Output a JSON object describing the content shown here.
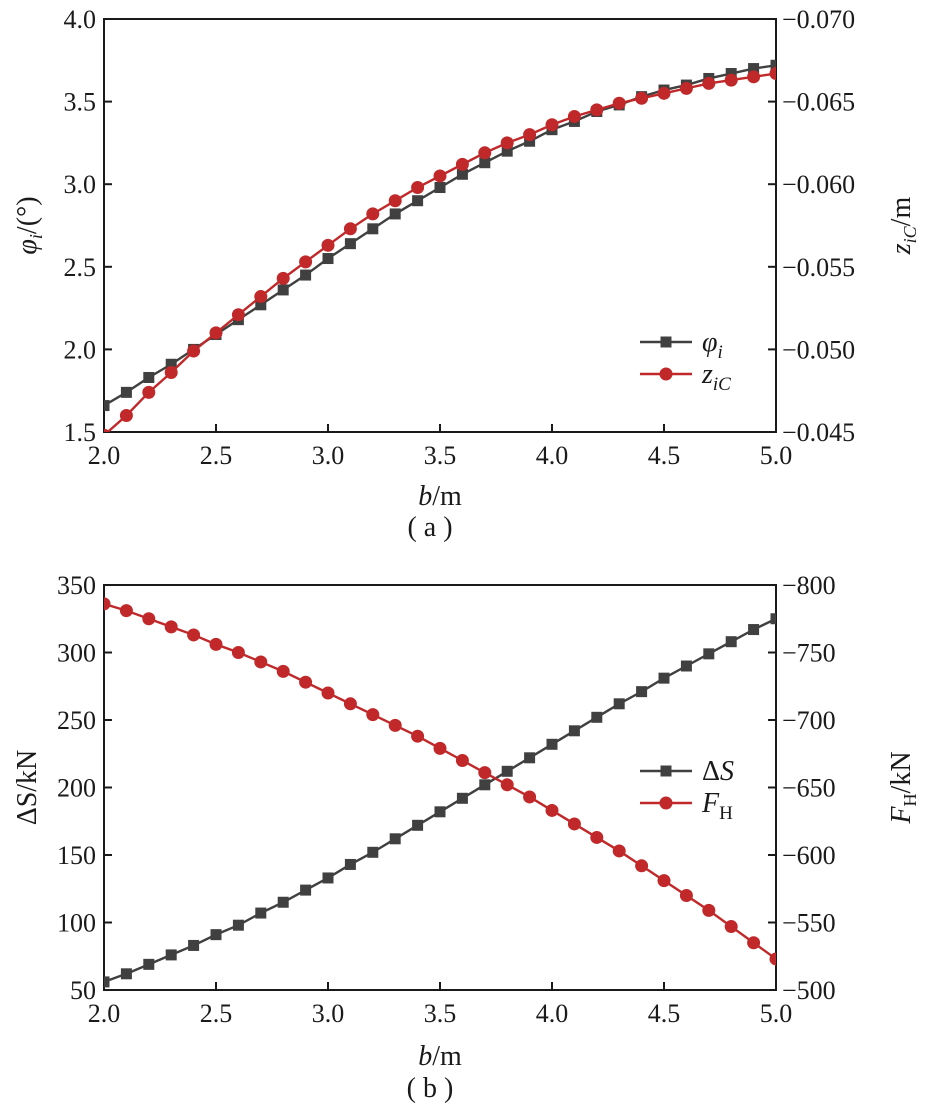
{
  "chart_data": [
    {
      "type": "line",
      "caption": "( a )",
      "x_axis": {
        "label_var": "b",
        "label_unit": "/m",
        "range": [
          2.0,
          5.0
        ],
        "ticks": [
          "2.0",
          "2.5",
          "3.0",
          "3.5",
          "4.0",
          "4.5",
          "5.0"
        ]
      },
      "y_left": {
        "label_var": "φ",
        "label_sub": "i",
        "label_unit": "/(°)",
        "range": [
          1.5,
          4.0
        ],
        "ticks": [
          "1.5",
          "2.0",
          "2.5",
          "3.0",
          "3.5",
          "4.0"
        ]
      },
      "y_right": {
        "label_var": "z",
        "label_sub": "iC",
        "label_unit": "/m",
        "range": [
          -0.045,
          -0.07
        ],
        "ticks": [
          "−0.045",
          "−0.050",
          "−0.055",
          "−0.060",
          "−0.065",
          "−0.070"
        ]
      },
      "legend_position": "right-middle",
      "series": [
        {
          "name": "φi",
          "legend_var": "φ",
          "legend_sub": "i",
          "axis": "left",
          "marker": "square",
          "color": "#404040",
          "x": [
            2.0,
            2.1,
            2.2,
            2.3,
            2.4,
            2.5,
            2.6,
            2.7,
            2.8,
            2.9,
            3.0,
            3.1,
            3.2,
            3.3,
            3.4,
            3.5,
            3.6,
            3.7,
            3.8,
            3.9,
            4.0,
            4.1,
            4.2,
            4.3,
            4.4,
            4.5,
            4.6,
            4.7,
            4.8,
            4.9,
            5.0
          ],
          "y": [
            1.66,
            1.74,
            1.83,
            1.91,
            2.0,
            2.09,
            2.18,
            2.27,
            2.36,
            2.45,
            2.55,
            2.64,
            2.73,
            2.82,
            2.9,
            2.98,
            3.06,
            3.13,
            3.2,
            3.26,
            3.33,
            3.38,
            3.44,
            3.48,
            3.53,
            3.57,
            3.6,
            3.64,
            3.67,
            3.7,
            3.72
          ]
        },
        {
          "name": "ziC",
          "legend_var": "z",
          "legend_sub": "iC",
          "axis": "right",
          "marker": "circle",
          "color": "#c0282a",
          "x": [
            2.0,
            2.1,
            2.2,
            2.3,
            2.4,
            2.5,
            2.6,
            2.7,
            2.8,
            2.9,
            3.0,
            3.1,
            3.2,
            3.3,
            3.4,
            3.5,
            3.6,
            3.7,
            3.8,
            3.9,
            4.0,
            4.1,
            4.2,
            4.3,
            4.4,
            4.5,
            4.6,
            4.7,
            4.8,
            4.9,
            5.0
          ],
          "y": [
            -0.0448,
            -0.046,
            -0.0474,
            -0.0486,
            -0.0499,
            -0.051,
            -0.0521,
            -0.0532,
            -0.0543,
            -0.0553,
            -0.0563,
            -0.0573,
            -0.0582,
            -0.059,
            -0.0598,
            -0.0605,
            -0.0612,
            -0.0619,
            -0.0625,
            -0.063,
            -0.0636,
            -0.0641,
            -0.0645,
            -0.0649,
            -0.0652,
            -0.0655,
            -0.0658,
            -0.0661,
            -0.0663,
            -0.0665,
            -0.0667
          ]
        }
      ]
    },
    {
      "type": "line",
      "caption": "( b )",
      "x_axis": {
        "label_var": "b",
        "label_unit": "/m",
        "range": [
          2.0,
          5.0
        ],
        "ticks": [
          "2.0",
          "2.5",
          "3.0",
          "3.5",
          "4.0",
          "4.5",
          "5.0"
        ]
      },
      "y_left": {
        "label_var": "ΔS",
        "label_sub": "",
        "label_unit": "/kN",
        "range": [
          50,
          350
        ],
        "ticks": [
          "50",
          "100",
          "150",
          "200",
          "250",
          "300",
          "350"
        ]
      },
      "y_right": {
        "label_var": "F",
        "label_sub": "H",
        "label_unit": "/kN",
        "range": [
          -500,
          -800
        ],
        "ticks": [
          "−500",
          "−550",
          "−600",
          "−650",
          "−700",
          "−750",
          "−800"
        ]
      },
      "legend_position": "right-middle",
      "series": [
        {
          "name": "ΔS",
          "legend_var": "ΔS",
          "legend_sub": "",
          "axis": "left",
          "marker": "square",
          "color": "#404040",
          "x": [
            2.0,
            2.1,
            2.2,
            2.3,
            2.4,
            2.5,
            2.6,
            2.7,
            2.8,
            2.9,
            3.0,
            3.1,
            3.2,
            3.3,
            3.4,
            3.5,
            3.6,
            3.7,
            3.8,
            3.9,
            4.0,
            4.1,
            4.2,
            4.3,
            4.4,
            4.5,
            4.6,
            4.7,
            4.8,
            4.9,
            5.0
          ],
          "y": [
            56,
            62,
            69,
            76,
            83,
            91,
            98,
            107,
            115,
            124,
            133,
            143,
            152,
            162,
            172,
            182,
            192,
            202,
            212,
            222,
            232,
            242,
            252,
            262,
            271,
            281,
            290,
            299,
            308,
            317,
            325
          ]
        },
        {
          "name": "FH",
          "legend_var": "F",
          "legend_sub": "H",
          "axis": "right",
          "marker": "circle",
          "color": "#c0282a",
          "x": [
            2.0,
            2.1,
            2.2,
            2.3,
            2.4,
            2.5,
            2.6,
            2.7,
            2.8,
            2.9,
            3.0,
            3.1,
            3.2,
            3.3,
            3.4,
            3.5,
            3.6,
            3.7,
            3.8,
            3.9,
            4.0,
            4.1,
            4.2,
            4.3,
            4.4,
            4.5,
            4.6,
            4.7,
            4.8,
            4.9,
            5.0
          ],
          "y": [
            -786,
            -781,
            -775,
            -769,
            -763,
            -756,
            -750,
            -743,
            -736,
            -728,
            -720,
            -712,
            -704,
            -696,
            -688,
            -679,
            -670,
            -661,
            -652,
            -643,
            -633,
            -623,
            -613,
            -603,
            -592,
            -581,
            -570,
            -559,
            -547,
            -535,
            -523
          ]
        }
      ]
    }
  ]
}
